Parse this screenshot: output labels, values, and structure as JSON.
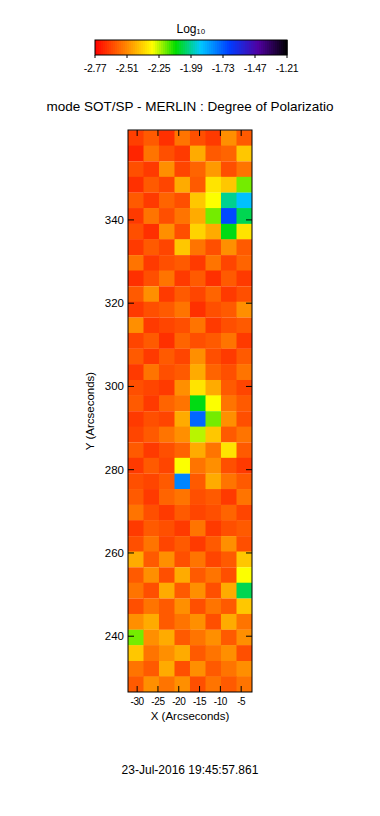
{
  "chart_data": {
    "type": "heatmap",
    "title": "mode SOT/SP - MERLIN : Degree of Polarizatio",
    "x_label": "X (Arcseconds)",
    "y_label": "Y (Arcseconds)",
    "footer": "23-Jul-2016 19:45:57.861",
    "xlim": [
      -32.2,
      -2.4
    ],
    "ylim": [
      226.6,
      361.6
    ],
    "xticks": [
      -30,
      -25,
      -20,
      -15,
      -10,
      -5
    ],
    "yticks": [
      240,
      260,
      280,
      300,
      320,
      340
    ],
    "x": [
      -30.34,
      -26.61,
      -22.89,
      -19.16,
      -15.44,
      -11.71,
      -7.99,
      -4.26
    ],
    "y": [
      359.7,
      356.0,
      352.2,
      348.5,
      344.7,
      341.0,
      337.2,
      333.5,
      329.7,
      326.0,
      322.2,
      318.5,
      314.7,
      311.0,
      307.2,
      303.5,
      299.7,
      296.0,
      292.2,
      288.5,
      284.7,
      281.0,
      277.2,
      273.5,
      269.7,
      266.0,
      262.2,
      258.5,
      254.7,
      251.0,
      247.2,
      243.5,
      239.7,
      236.0,
      232.2,
      228.5
    ],
    "z": [
      [
        -2.65,
        -2.6,
        -2.68,
        -2.55,
        -2.62,
        -2.66,
        -2.5,
        -2.6
      ],
      [
        -2.7,
        -2.55,
        -2.62,
        -2.66,
        -2.45,
        -2.6,
        -2.58,
        -2.4
      ],
      [
        -2.62,
        -2.66,
        -2.5,
        -2.64,
        -2.58,
        -2.48,
        -2.62,
        -2.55
      ],
      [
        -2.68,
        -2.6,
        -2.64,
        -2.45,
        -2.6,
        -2.35,
        -2.4,
        -2.2
      ],
      [
        -2.6,
        -2.66,
        -2.58,
        -2.62,
        -2.4,
        -2.3,
        -2.0,
        -1.9
      ],
      [
        -2.66,
        -2.55,
        -2.62,
        -2.55,
        -2.45,
        -2.2,
        -1.7,
        -2.05
      ],
      [
        -2.62,
        -2.68,
        -2.5,
        -2.62,
        -2.38,
        -2.45,
        -2.1,
        -2.35
      ],
      [
        -2.66,
        -2.6,
        -2.64,
        -2.4,
        -2.55,
        -2.62,
        -2.5,
        -2.6
      ],
      [
        -2.55,
        -2.66,
        -2.62,
        -2.6,
        -2.66,
        -2.55,
        -2.64,
        -2.58
      ],
      [
        -2.68,
        -2.62,
        -2.55,
        -2.66,
        -2.6,
        -2.68,
        -2.6,
        -2.66
      ],
      [
        -2.6,
        -2.5,
        -2.66,
        -2.6,
        -2.64,
        -2.58,
        -2.66,
        -2.62
      ],
      [
        -2.66,
        -2.62,
        -2.6,
        -2.55,
        -2.68,
        -2.62,
        -2.6,
        -2.5
      ],
      [
        -2.5,
        -2.66,
        -2.64,
        -2.62,
        -2.55,
        -2.66,
        -2.62,
        -2.6
      ],
      [
        -2.64,
        -2.6,
        -2.68,
        -2.58,
        -2.62,
        -2.6,
        -2.55,
        -2.66
      ],
      [
        -2.6,
        -2.66,
        -2.6,
        -2.64,
        -2.5,
        -2.62,
        -2.66,
        -2.6
      ],
      [
        -2.66,
        -2.55,
        -2.62,
        -2.6,
        -2.45,
        -2.58,
        -2.62,
        -2.55
      ],
      [
        -2.62,
        -2.64,
        -2.66,
        -2.5,
        -2.35,
        -2.45,
        -2.6,
        -2.64
      ],
      [
        -2.6,
        -2.66,
        -2.58,
        -2.55,
        -2.1,
        -2.3,
        -2.55,
        -2.6
      ],
      [
        -2.66,
        -2.62,
        -2.64,
        -2.45,
        -1.75,
        -2.2,
        -2.5,
        -2.62
      ],
      [
        -2.64,
        -2.6,
        -2.55,
        -2.5,
        -2.25,
        -2.4,
        -2.6,
        -2.55
      ],
      [
        -2.6,
        -2.66,
        -2.62,
        -2.58,
        -2.45,
        -2.55,
        -2.35,
        -2.6
      ],
      [
        -2.66,
        -2.6,
        -2.64,
        -2.3,
        -2.55,
        -2.5,
        -2.62,
        -2.66
      ],
      [
        -2.62,
        -2.64,
        -2.6,
        -1.8,
        -2.6,
        -2.45,
        -2.55,
        -2.6
      ],
      [
        -2.6,
        -2.66,
        -2.58,
        -2.55,
        -2.62,
        -2.6,
        -2.66,
        -2.55
      ],
      [
        -2.55,
        -2.62,
        -2.66,
        -2.6,
        -2.64,
        -2.62,
        -2.58,
        -2.64
      ],
      [
        -2.66,
        -2.6,
        -2.62,
        -2.66,
        -2.55,
        -2.66,
        -2.62,
        -2.6
      ],
      [
        -2.62,
        -2.55,
        -2.64,
        -2.6,
        -2.66,
        -2.6,
        -2.5,
        -2.62
      ],
      [
        -2.45,
        -2.6,
        -2.5,
        -2.62,
        -2.55,
        -2.64,
        -2.6,
        -2.4
      ],
      [
        -2.6,
        -2.5,
        -2.62,
        -2.45,
        -2.6,
        -2.55,
        -2.62,
        -2.3
      ],
      [
        -2.55,
        -2.62,
        -2.45,
        -2.6,
        -2.5,
        -2.62,
        -2.45,
        -2.05
      ],
      [
        -2.62,
        -2.55,
        -2.6,
        -2.5,
        -2.62,
        -2.55,
        -2.6,
        -2.4
      ],
      [
        -2.5,
        -2.45,
        -2.6,
        -2.55,
        -2.5,
        -2.62,
        -2.45,
        -2.55
      ],
      [
        -2.2,
        -2.5,
        -2.45,
        -2.6,
        -2.55,
        -2.5,
        -2.6,
        -2.5
      ],
      [
        -2.4,
        -2.55,
        -2.5,
        -2.45,
        -2.6,
        -2.55,
        -2.5,
        -2.62
      ],
      [
        -2.55,
        -2.6,
        -2.45,
        -2.62,
        -2.5,
        -2.6,
        -2.55,
        -2.5
      ],
      [
        -2.6,
        -2.5,
        -2.55,
        -2.5,
        -2.62,
        -2.55,
        -2.6,
        -2.55
      ]
    ],
    "colorbar": {
      "label": "Log₁₀",
      "range": [
        -2.77,
        -1.21
      ],
      "ticks": [
        -2.77,
        -2.51,
        -2.25,
        -1.99,
        -1.73,
        -1.47,
        -1.21
      ]
    }
  }
}
